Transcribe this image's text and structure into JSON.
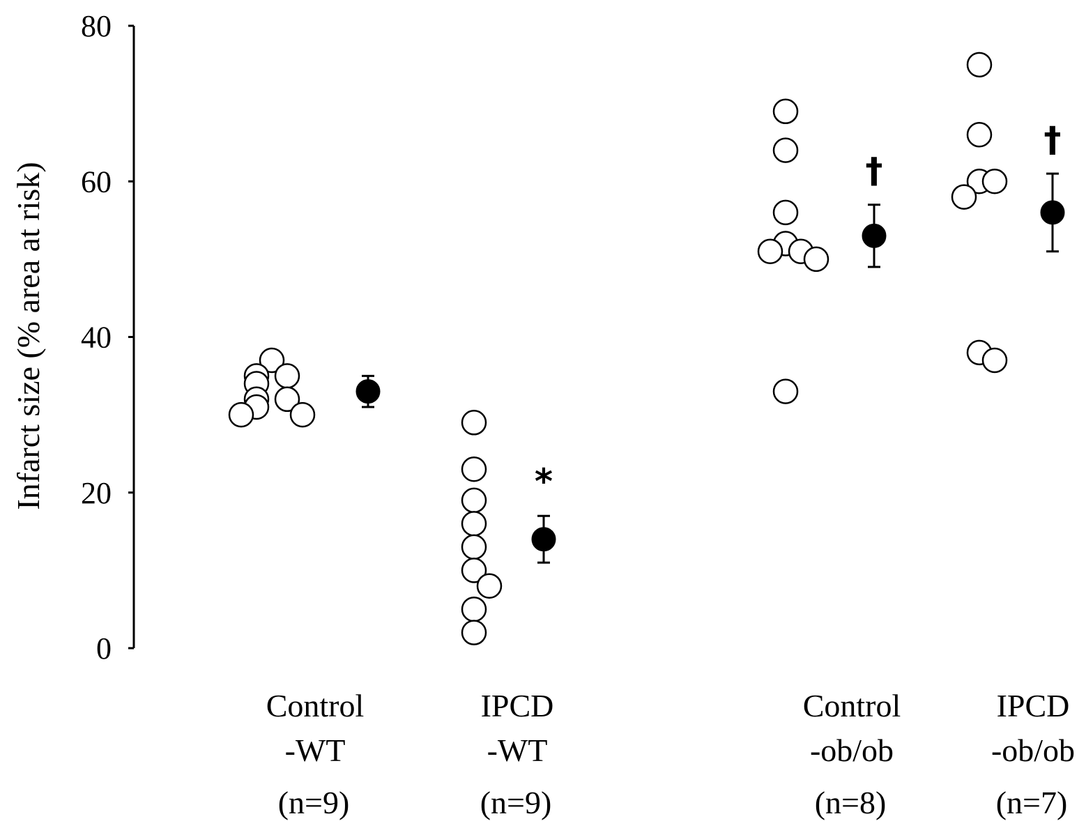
{
  "chart_data": {
    "type": "scatter",
    "title": "",
    "xlabel": "",
    "ylabel": "Infarct size (% area at risk)",
    "ylim": [
      0,
      80
    ],
    "yticks": [
      "0",
      "20",
      "40",
      "60",
      "80"
    ],
    "grid": false,
    "legend": "none",
    "groups": [
      {
        "label_line1": "Control",
        "label_line2": "-WT",
        "n_label": "(n=9)",
        "individual": [
          37,
          35,
          35,
          34,
          32,
          32,
          31,
          30,
          30
        ],
        "mean": 33,
        "sem": 2,
        "significance": ""
      },
      {
        "label_line1": "IPCD",
        "label_line2": "-WT",
        "n_label": "(n=9)",
        "individual": [
          29,
          23,
          19,
          16,
          13,
          10,
          8,
          5,
          2
        ],
        "mean": 14,
        "sem": 3,
        "significance": "*"
      },
      {
        "label_line1": "Control",
        "label_line2": "-ob/ob",
        "n_label": "(n=8)",
        "individual": [
          69,
          64,
          56,
          52,
          51,
          51,
          50,
          33
        ],
        "mean": 53,
        "sem": 4,
        "significance": "†"
      },
      {
        "label_line1": "IPCD",
        "label_line2": "-ob/ob",
        "n_label": "(n=7)",
        "individual": [
          75,
          66,
          60,
          60,
          58,
          38,
          37
        ],
        "mean": 56,
        "sem": 5,
        "significance": "†"
      }
    ]
  }
}
